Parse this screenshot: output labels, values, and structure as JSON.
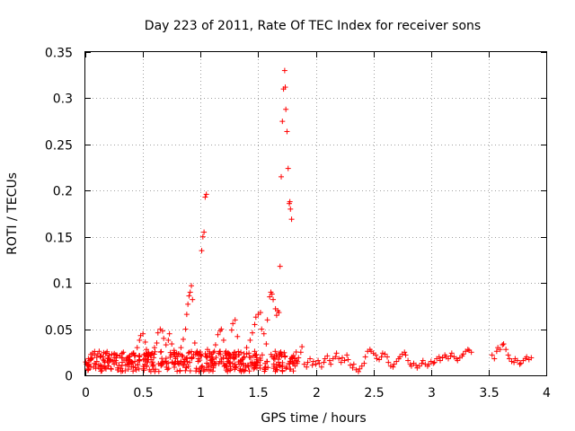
{
  "chart_data": {
    "type": "scatter",
    "title": "Day 223 of 2011, Rate Of TEC Index for receiver sons",
    "xlabel": "GPS time / hours",
    "ylabel": "ROTI / TECUs",
    "xlim": [
      0,
      4
    ],
    "ylim": [
      0,
      0.35
    ],
    "xticks": [
      "0",
      "0.5",
      "1",
      "1.5",
      "2",
      "2.5",
      "3",
      "3.5",
      "4"
    ],
    "yticks": [
      "0",
      "0.05",
      "0.1",
      "0.15",
      "0.2",
      "0.25",
      "0.3",
      "0.35"
    ],
    "grid": true,
    "marker": "+",
    "colors": {
      "points": "#ff0000",
      "frame": "#000000",
      "grid": "#a0a0a0"
    },
    "series": [
      {
        "name": "ROTI",
        "points": [
          [
            0.03,
            0.012
          ],
          [
            0.05,
            0.018
          ],
          [
            0.07,
            0.009
          ],
          [
            0.08,
            0.022
          ],
          [
            0.1,
            0.015
          ],
          [
            0.12,
            0.026
          ],
          [
            0.13,
            0.011
          ],
          [
            0.15,
            0.02
          ],
          [
            0.17,
            0.014
          ],
          [
            0.18,
            0.024
          ],
          [
            0.2,
            0.01
          ],
          [
            0.22,
            0.017
          ],
          [
            0.23,
            0.023
          ],
          [
            0.25,
            0.012
          ],
          [
            0.27,
            0.019
          ],
          [
            0.28,
            0.008
          ],
          [
            0.3,
            0.021
          ],
          [
            0.32,
            0.014
          ],
          [
            0.33,
            0.025
          ],
          [
            0.35,
            0.011
          ],
          [
            0.37,
            0.016
          ],
          [
            0.38,
            0.02
          ],
          [
            0.4,
            0.009
          ],
          [
            0.42,
            0.024
          ],
          [
            0.43,
            0.015
          ],
          [
            0.45,
            0.03
          ],
          [
            0.47,
            0.038
          ],
          [
            0.48,
            0.043
          ],
          [
            0.5,
            0.045
          ],
          [
            0.52,
            0.036
          ],
          [
            0.53,
            0.028
          ],
          [
            0.55,
            0.021
          ],
          [
            0.57,
            0.017
          ],
          [
            0.58,
            0.024
          ],
          [
            0.6,
            0.03
          ],
          [
            0.62,
            0.035
          ],
          [
            0.63,
            0.046
          ],
          [
            0.65,
            0.05
          ],
          [
            0.67,
            0.048
          ],
          [
            0.68,
            0.04
          ],
          [
            0.7,
            0.033
          ],
          [
            0.72,
            0.038
          ],
          [
            0.73,
            0.045
          ],
          [
            0.75,
            0.034
          ],
          [
            0.77,
            0.027
          ],
          [
            0.78,
            0.02
          ],
          [
            0.8,
            0.015
          ],
          [
            0.82,
            0.023
          ],
          [
            0.83,
            0.03
          ],
          [
            0.85,
            0.039
          ],
          [
            0.87,
            0.05
          ],
          [
            0.88,
            0.066
          ],
          [
            0.89,
            0.077
          ],
          [
            0.9,
            0.086
          ],
          [
            0.91,
            0.09
          ],
          [
            0.92,
            0.097
          ],
          [
            0.93,
            0.082
          ],
          [
            0.95,
            0.035
          ],
          [
            0.97,
            0.026
          ],
          [
            0.98,
            0.018
          ],
          [
            1.0,
            0.022
          ],
          [
            1.01,
            0.135
          ],
          [
            1.02,
            0.15
          ],
          [
            1.03,
            0.155
          ],
          [
            1.04,
            0.193
          ],
          [
            1.05,
            0.196
          ],
          [
            1.06,
            0.028
          ],
          [
            1.08,
            0.021
          ],
          [
            1.1,
            0.017
          ],
          [
            1.12,
            0.026
          ],
          [
            1.13,
            0.033
          ],
          [
            1.15,
            0.044
          ],
          [
            1.17,
            0.048
          ],
          [
            1.18,
            0.05
          ],
          [
            1.2,
            0.038
          ],
          [
            1.22,
            0.026
          ],
          [
            1.23,
            0.018
          ],
          [
            1.25,
            0.023
          ],
          [
            1.27,
            0.049
          ],
          [
            1.28,
            0.056
          ],
          [
            1.3,
            0.06
          ],
          [
            1.32,
            0.042
          ],
          [
            1.33,
            0.022
          ],
          [
            1.35,
            0.016
          ],
          [
            1.37,
            0.013
          ],
          [
            1.38,
            0.02
          ],
          [
            1.4,
            0.03
          ],
          [
            1.42,
            0.024
          ],
          [
            1.43,
            0.038
          ],
          [
            1.45,
            0.046
          ],
          [
            1.47,
            0.055
          ],
          [
            1.48,
            0.063
          ],
          [
            1.5,
            0.066
          ],
          [
            1.52,
            0.068
          ],
          [
            1.53,
            0.05
          ],
          [
            1.55,
            0.045
          ],
          [
            1.57,
            0.034
          ],
          [
            1.58,
            0.06
          ],
          [
            1.6,
            0.085
          ],
          [
            1.61,
            0.09
          ],
          [
            1.62,
            0.088
          ],
          [
            1.63,
            0.082
          ],
          [
            1.65,
            0.072
          ],
          [
            1.66,
            0.065
          ],
          [
            1.67,
            0.07
          ],
          [
            1.68,
            0.068
          ],
          [
            1.69,
            0.118
          ],
          [
            1.7,
            0.215
          ],
          [
            1.71,
            0.275
          ],
          [
            1.72,
            0.31
          ],
          [
            1.73,
            0.33
          ],
          [
            1.735,
            0.312
          ],
          [
            1.74,
            0.288
          ],
          [
            1.75,
            0.264
          ],
          [
            1.76,
            0.224
          ],
          [
            1.77,
            0.186
          ],
          [
            1.775,
            0.188
          ],
          [
            1.78,
            0.18
          ],
          [
            1.79,
            0.169
          ],
          [
            1.8,
            0.013
          ],
          [
            1.82,
            0.01
          ],
          [
            1.83,
            0.016
          ],
          [
            1.85,
            0.019
          ],
          [
            1.87,
            0.025
          ],
          [
            1.88,
            0.031
          ],
          [
            1.9,
            0.012
          ],
          [
            1.92,
            0.009
          ],
          [
            1.93,
            0.014
          ],
          [
            1.95,
            0.018
          ],
          [
            1.97,
            0.011
          ],
          [
            1.98,
            0.015
          ],
          [
            2.0,
            0.012
          ],
          [
            2.02,
            0.016
          ],
          [
            2.03,
            0.013
          ],
          [
            2.05,
            0.009
          ],
          [
            2.07,
            0.014
          ],
          [
            2.08,
            0.018
          ],
          [
            2.1,
            0.021
          ],
          [
            2.12,
            0.016
          ],
          [
            2.13,
            0.012
          ],
          [
            2.15,
            0.018
          ],
          [
            2.17,
            0.02
          ],
          [
            2.18,
            0.024
          ],
          [
            2.2,
            0.018
          ],
          [
            2.22,
            0.014
          ],
          [
            2.23,
            0.019
          ],
          [
            2.25,
            0.016
          ],
          [
            2.27,
            0.022
          ],
          [
            2.28,
            0.017
          ],
          [
            2.3,
            0.011
          ],
          [
            2.32,
            0.008
          ],
          [
            2.33,
            0.012
          ],
          [
            2.35,
            0.006
          ],
          [
            2.37,
            0.004
          ],
          [
            2.38,
            0.007
          ],
          [
            2.4,
            0.01
          ],
          [
            2.42,
            0.013
          ],
          [
            2.43,
            0.02
          ],
          [
            2.45,
            0.026
          ],
          [
            2.47,
            0.028
          ],
          [
            2.48,
            0.026
          ],
          [
            2.5,
            0.024
          ],
          [
            2.52,
            0.022
          ],
          [
            2.53,
            0.018
          ],
          [
            2.55,
            0.017
          ],
          [
            2.57,
            0.02
          ],
          [
            2.58,
            0.024
          ],
          [
            2.6,
            0.023
          ],
          [
            2.62,
            0.02
          ],
          [
            2.63,
            0.014
          ],
          [
            2.65,
            0.01
          ],
          [
            2.67,
            0.009
          ],
          [
            2.68,
            0.012
          ],
          [
            2.7,
            0.015
          ],
          [
            2.72,
            0.018
          ],
          [
            2.73,
            0.02
          ],
          [
            2.75,
            0.023
          ],
          [
            2.77,
            0.025
          ],
          [
            2.78,
            0.022
          ],
          [
            2.8,
            0.016
          ],
          [
            2.82,
            0.012
          ],
          [
            2.83,
            0.01
          ],
          [
            2.85,
            0.013
          ],
          [
            2.87,
            0.011
          ],
          [
            2.88,
            0.008
          ],
          [
            2.9,
            0.01
          ],
          [
            2.92,
            0.013
          ],
          [
            2.93,
            0.016
          ],
          [
            2.95,
            0.012
          ],
          [
            2.97,
            0.01
          ],
          [
            2.98,
            0.012
          ],
          [
            3.0,
            0.015
          ],
          [
            3.02,
            0.013
          ],
          [
            3.03,
            0.014
          ],
          [
            3.05,
            0.018
          ],
          [
            3.07,
            0.02
          ],
          [
            3.08,
            0.016
          ],
          [
            3.1,
            0.019
          ],
          [
            3.12,
            0.022
          ],
          [
            3.13,
            0.02
          ],
          [
            3.15,
            0.018
          ],
          [
            3.17,
            0.021
          ],
          [
            3.18,
            0.024
          ],
          [
            3.2,
            0.02
          ],
          [
            3.22,
            0.018
          ],
          [
            3.23,
            0.016
          ],
          [
            3.25,
            0.019
          ],
          [
            3.27,
            0.021
          ],
          [
            3.28,
            0.023
          ],
          [
            3.3,
            0.026
          ],
          [
            3.32,
            0.028
          ],
          [
            3.33,
            0.027
          ],
          [
            3.35,
            0.025
          ],
          [
            3.53,
            0.022
          ],
          [
            3.55,
            0.018
          ],
          [
            3.57,
            0.026
          ],
          [
            3.58,
            0.03
          ],
          [
            3.6,
            0.028
          ],
          [
            3.62,
            0.033
          ],
          [
            3.63,
            0.034
          ],
          [
            3.65,
            0.028
          ],
          [
            3.67,
            0.022
          ],
          [
            3.68,
            0.018
          ],
          [
            3.7,
            0.015
          ],
          [
            3.72,
            0.014
          ],
          [
            3.73,
            0.018
          ],
          [
            3.75,
            0.016
          ],
          [
            3.77,
            0.012
          ],
          [
            3.78,
            0.013
          ],
          [
            3.8,
            0.016
          ],
          [
            3.82,
            0.018
          ],
          [
            3.83,
            0.02
          ],
          [
            3.85,
            0.017
          ],
          [
            3.87,
            0.019
          ]
        ],
        "dense_band": {
          "x_range": [
            0.0,
            1.85
          ],
          "y_range": [
            0.0,
            0.026
          ]
        }
      }
    ]
  }
}
